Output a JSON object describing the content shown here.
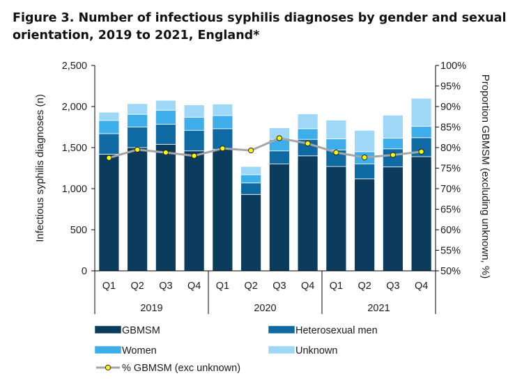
{
  "title": "Figure 3. Number of infectious syphilis diagnoses by gender and sexual orientation, 2019 to 2021, England*",
  "chart_data": {
    "type": "bar",
    "stacked": true,
    "title": "Figure 3. Number of infectious syphilis diagnoses by gender and sexual orientation, 2019 to 2021, England*",
    "ylabel": "Infectious syphilis diagnoses (n)",
    "y2label": "Proportion GBMSM (excluding unknown, %)",
    "ylim": [
      0,
      2500
    ],
    "y2lim": [
      50,
      100
    ],
    "yticks": [
      "0",
      "500",
      "1,000",
      "1,500",
      "2,000",
      "2,500"
    ],
    "y2ticks": [
      "50%",
      "55%",
      "60%",
      "65%",
      "70%",
      "75%",
      "80%",
      "85%",
      "90%",
      "95%",
      "100%"
    ],
    "categories": [
      "Q1",
      "Q2",
      "Q3",
      "Q4",
      "Q1",
      "Q2",
      "Q3",
      "Q4",
      "Q1",
      "Q2",
      "Q3",
      "Q4"
    ],
    "groups": [
      {
        "label": "2019",
        "span": 4
      },
      {
        "label": "2020",
        "span": 4
      },
      {
        "label": "2021",
        "span": 4
      }
    ],
    "series": [
      {
        "name": "GBMSM",
        "color": "#0b3c5d",
        "values": [
          1420,
          1500,
          1540,
          1460,
          1480,
          930,
          1300,
          1400,
          1270,
          1120,
          1265,
          1390
        ]
      },
      {
        "name": "Heterosexual men",
        "color": "#0f6aa3",
        "values": [
          250,
          250,
          245,
          250,
          250,
          140,
          160,
          200,
          200,
          180,
          220,
          230
        ]
      },
      {
        "name": "Women",
        "color": "#3daee9",
        "values": [
          160,
          155,
          170,
          160,
          160,
          100,
          140,
          130,
          135,
          150,
          130,
          140
        ]
      },
      {
        "name": "Unknown",
        "color": "#9fd8f7",
        "values": [
          100,
          130,
          120,
          150,
          140,
          100,
          140,
          180,
          230,
          260,
          280,
          340
        ]
      }
    ],
    "line_series": {
      "name": "% GBMSM (exc unknown)",
      "axis": "right",
      "color": "#a6a6a6",
      "marker_color": "#ffff00",
      "values": [
        77.5,
        79.5,
        78.8,
        78.0,
        79.8,
        79.3,
        82.3,
        81.0,
        78.8,
        77.6,
        78.2,
        79.0
      ]
    },
    "legend_position": "bottom",
    "grid": false
  }
}
